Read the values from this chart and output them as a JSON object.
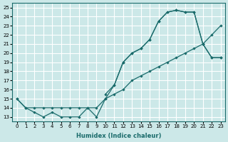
{
  "xlabel": "Humidex (Indice chaleur)",
  "bg_color": "#cce8e8",
  "grid_color": "#ffffff",
  "line_color": "#1a6b6b",
  "xlim": [
    -0.5,
    23.5
  ],
  "ylim": [
    12.5,
    25.5
  ],
  "xticks": [
    0,
    1,
    2,
    3,
    4,
    5,
    6,
    7,
    8,
    9,
    10,
    11,
    12,
    13,
    14,
    15,
    16,
    17,
    18,
    19,
    20,
    21,
    22,
    23
  ],
  "yticks": [
    13,
    14,
    15,
    16,
    17,
    18,
    19,
    20,
    21,
    22,
    23,
    24,
    25
  ],
  "series1_x": [
    0,
    1,
    2,
    3,
    4,
    5,
    6,
    7,
    8,
    9,
    10,
    11,
    12,
    13,
    14,
    15,
    16,
    17,
    18,
    19,
    20,
    21,
    22,
    23
  ],
  "series1_y": [
    15,
    14,
    13.5,
    13,
    13.5,
    13,
    13,
    13,
    14,
    13,
    15,
    16.5,
    19,
    20,
    20.5,
    21.5,
    23.5,
    24.5,
    24.7,
    24.5,
    24.5,
    21.0,
    19.5,
    19.5
  ],
  "series2_x": [
    0,
    1,
    2,
    3,
    4,
    5,
    6,
    7,
    8,
    9,
    10,
    11,
    12,
    13,
    14,
    15,
    16,
    17,
    18,
    19,
    20,
    21,
    22,
    23
  ],
  "series2_y": [
    15,
    14,
    14,
    14,
    14,
    14,
    14,
    14,
    14,
    14,
    15,
    15.5,
    16,
    17,
    17.5,
    18,
    18.5,
    19,
    19.5,
    20,
    20.5,
    21,
    22,
    23
  ],
  "series3_x": [
    10,
    11,
    12,
    13,
    14,
    15,
    16,
    17,
    18,
    19,
    20,
    21,
    22,
    23
  ],
  "series3_y": [
    15.5,
    16.5,
    19,
    20,
    20.5,
    21.5,
    23.5,
    24.5,
    24.7,
    24.5,
    24.5,
    21.0,
    19.5,
    19.5
  ]
}
